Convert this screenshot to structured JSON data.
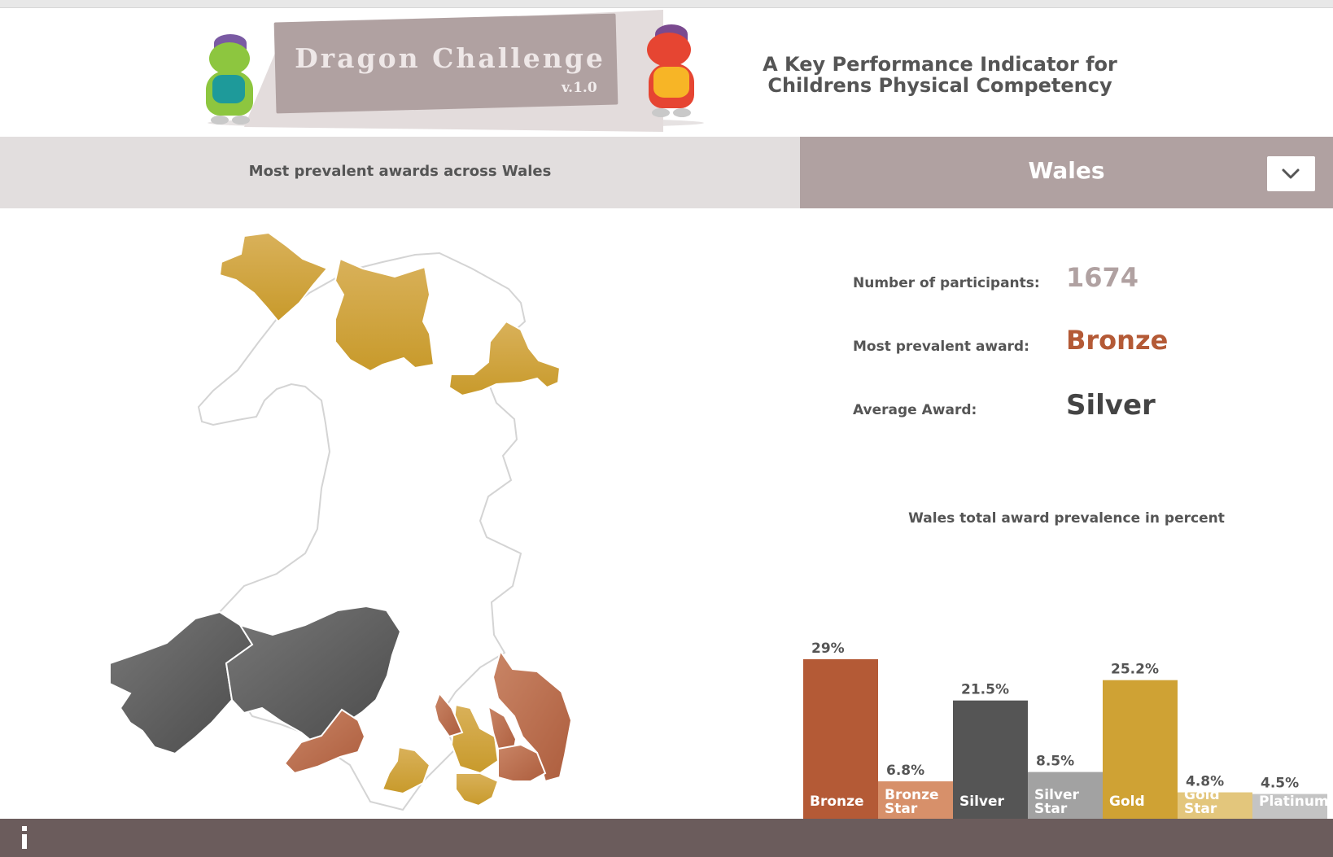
{
  "header": {
    "logo_title": "Dragon Challenge",
    "logo_version": "v.1.0",
    "tagline_line1": "A Key Performance Indicator for",
    "tagline_line2": "Childrens Physical Competency"
  },
  "map_panel": {
    "title": "Most prevalent awards across Wales"
  },
  "region_selector": {
    "selected": "Wales",
    "dropdown_icon": "chevron-down-icon"
  },
  "stats": {
    "participants_label": "Number of participants:",
    "participants_value": "1674",
    "prevalent_label": "Most prevalent award:",
    "prevalent_value": "Bronze",
    "average_label": "Average Award:",
    "average_value": "Silver"
  },
  "colors": {
    "bronze": "#b45a36",
    "bronze_star": "#d7906a",
    "silver": "#555555",
    "silver_star": "#a2a2a2",
    "gold": "#cfa234",
    "gold_star": "#e3c67c",
    "platinum": "#c4c4c4",
    "band": "#b0a1a1",
    "footer": "#6b5c5c"
  },
  "chart_data": {
    "type": "bar",
    "title": "Wales total award prevalence in percent",
    "categories": [
      "Bronze",
      "Bronze Star",
      "Silver",
      "Silver Star",
      "Gold",
      "Gold Star",
      "Platinum"
    ],
    "values": [
      29,
      6.8,
      21.5,
      8.5,
      25.2,
      4.8,
      4.5
    ],
    "value_labels": [
      "29%",
      "6.8%",
      "21.5%",
      "8.5%",
      "25.2%",
      "4.8%",
      "4.5%"
    ],
    "ylim": [
      0,
      29
    ],
    "xlabel": "",
    "ylabel": ""
  },
  "footer": {
    "info_icon": "info-icon"
  }
}
